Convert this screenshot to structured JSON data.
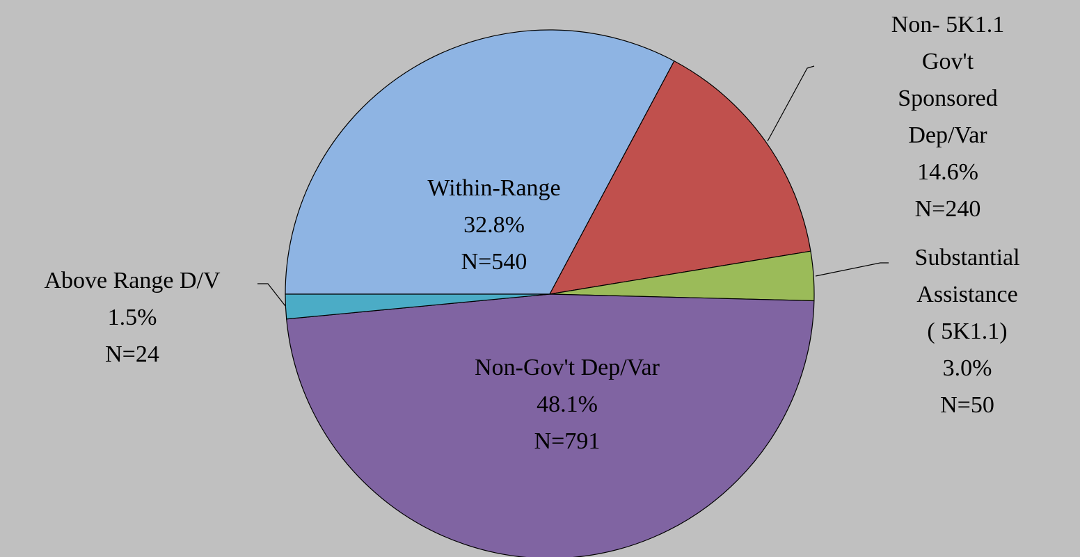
{
  "chart_data": {
    "type": "pie",
    "categories": [
      "Within-Range",
      "Non-  5K1.1 Gov't\nSponsored Dep/Var",
      "Substantial\nAssistance\n(  5K1.1)",
      "Non-Gov't Dep/Var",
      "Above Range D/V"
    ],
    "values": [
      32.8,
      14.6,
      3.0,
      48.1,
      1.5
    ],
    "value_labels": [
      "32.8%",
      "14.6%",
      "3.0%",
      "48.1%",
      "1.5%"
    ],
    "counts": [
      540,
      240,
      50,
      791,
      24
    ],
    "count_labels": [
      "N=540",
      "N=240",
      "N=50",
      "N=791",
      "N=24"
    ],
    "colors": [
      "#8eb4e3",
      "#c0504d",
      "#9bbb59",
      "#8064a2",
      "#4bacc6"
    ]
  }
}
